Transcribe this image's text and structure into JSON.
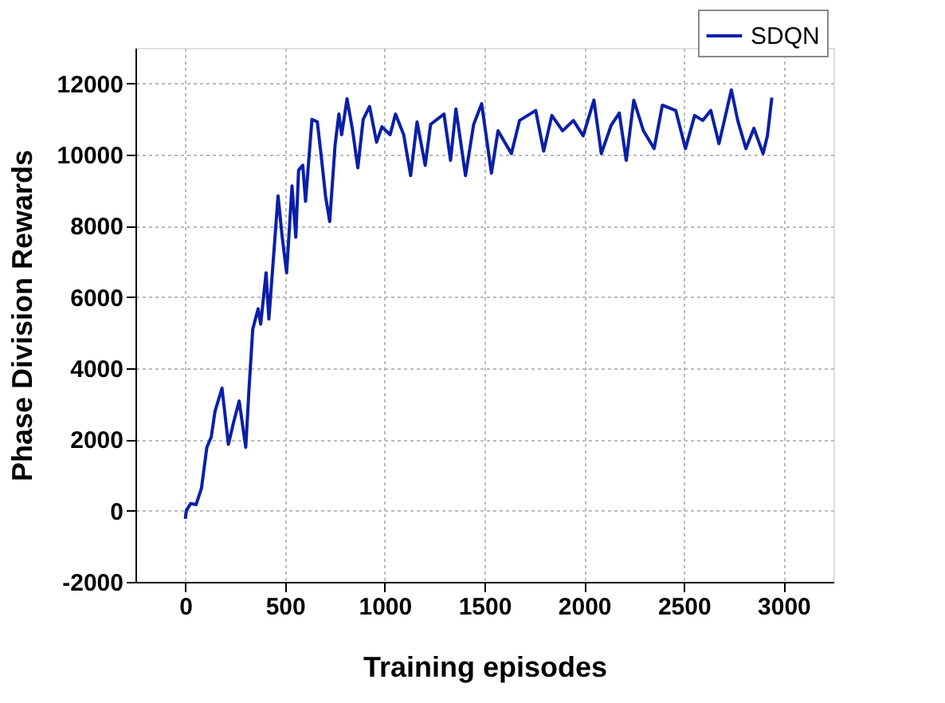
{
  "chart_data": {
    "type": "line",
    "xlabel": "Training episodes",
    "ylabel": "Phase Division Rewards",
    "xlim": [
      -250,
      3250
    ],
    "xticks": [
      0,
      500,
      1000,
      1500,
      2000,
      2500,
      3000
    ],
    "ylim": [
      -2000,
      13000
    ],
    "yticks": [
      -2000,
      0,
      2000,
      4000,
      6000,
      8000,
      10000,
      12000
    ],
    "grid": true,
    "legend": "top right",
    "line_style": "solid",
    "marker": "none",
    "series": [
      {
        "name": "SDQN",
        "color": "#0a1fa8",
        "x": [
          0,
          5,
          27,
          54,
          81,
          108,
          130,
          149,
          184,
          216,
          243,
          270,
          303,
          319,
          338,
          365,
          378,
          405,
          419,
          446,
          465,
          486,
          508,
          535,
          554,
          568,
          589,
          603,
          635,
          662,
          681,
          703,
          724,
          751,
          770,
          784,
          811,
          838,
          865,
          892,
          924,
          959,
          986,
          1027,
          1054,
          1095,
          1130,
          1162,
          1203,
          1230,
          1297,
          1330,
          1357,
          1405,
          1446,
          1486,
          1535,
          1568,
          1635,
          1676,
          1757,
          1797,
          1838,
          1892,
          1946,
          1995,
          2049,
          2086,
          2135,
          2176,
          2211,
          2249,
          2297,
          2351,
          2392,
          2459,
          2508,
          2554,
          2595,
          2635,
          2676,
          2703,
          2738,
          2770,
          2811,
          2851,
          2897,
          2919,
          2941
        ],
        "values": [
          -230,
          0,
          200,
          170,
          630,
          1780,
          2070,
          2790,
          3440,
          1860,
          2500,
          3080,
          1780,
          3370,
          5090,
          5670,
          5240,
          6680,
          5380,
          7400,
          8840,
          7680,
          6680,
          9120,
          7680,
          9560,
          9700,
          8690,
          10990,
          10920,
          9990,
          8840,
          8120,
          10270,
          11140,
          10560,
          11570,
          10710,
          9630,
          10990,
          11350,
          10350,
          10780,
          10560,
          11140,
          10560,
          9410,
          10920,
          9700,
          10850,
          11140,
          9840,
          11280,
          9410,
          10850,
          11430,
          9480,
          10670,
          10030,
          10960,
          11240,
          10100,
          11100,
          10670,
          10960,
          10530,
          11530,
          10030,
          10820,
          11170,
          9840,
          11530,
          10670,
          10170,
          11390,
          11240,
          10170,
          11100,
          10960,
          11240,
          10310,
          10960,
          11820,
          10960,
          10170,
          10740,
          10030,
          10530,
          11600
        ]
      }
    ]
  }
}
